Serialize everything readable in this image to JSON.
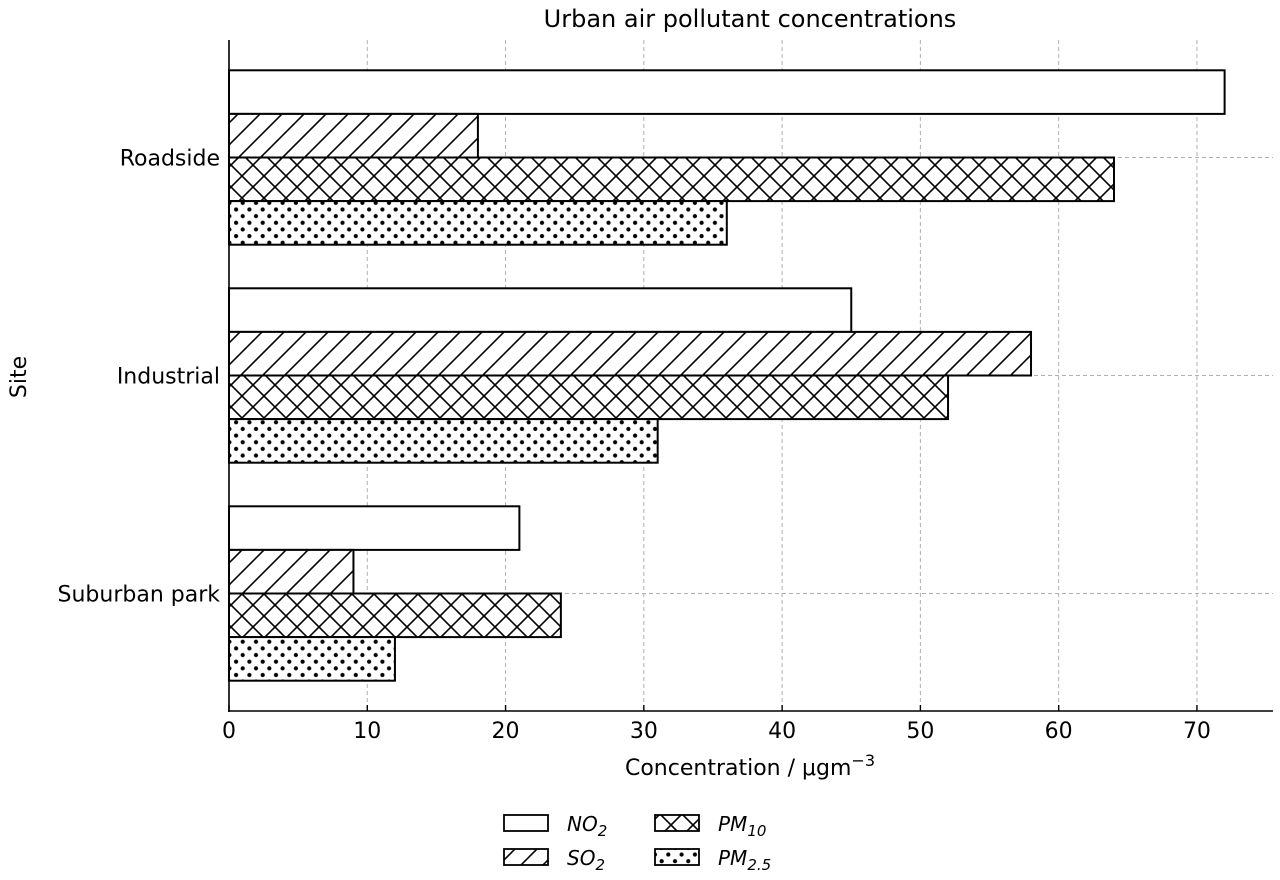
{
  "chart_data": {
    "type": "bar",
    "orientation": "horizontal",
    "title": "Urban air pollutant concentrations",
    "xlabel": {
      "text": "Concentration / μgm",
      "sup": "−3"
    },
    "ylabel": "Site",
    "categories": [
      "Roadside",
      "Industrial",
      "Suburban park"
    ],
    "series": [
      {
        "name": "NO2",
        "label_base": "NO",
        "label_sub": "2",
        "pattern": "none",
        "values": [
          72,
          45,
          21
        ]
      },
      {
        "name": "SO2",
        "label_base": "SO",
        "label_sub": "2",
        "pattern": "diagonal",
        "values": [
          18,
          58,
          9
        ]
      },
      {
        "name": "PM10",
        "label_base": "PM",
        "label_sub": "10",
        "pattern": "crosshatch",
        "values": [
          64,
          52,
          24
        ]
      },
      {
        "name": "PM2.5",
        "label_base": "PM",
        "label_sub": "2.5",
        "pattern": "dots",
        "values": [
          36,
          31,
          12
        ]
      }
    ],
    "xlim": [
      0,
      75.5
    ],
    "xticks": [
      0,
      10,
      20,
      30,
      40,
      50,
      60,
      70
    ],
    "grid": true,
    "legend": "bottom-center"
  }
}
